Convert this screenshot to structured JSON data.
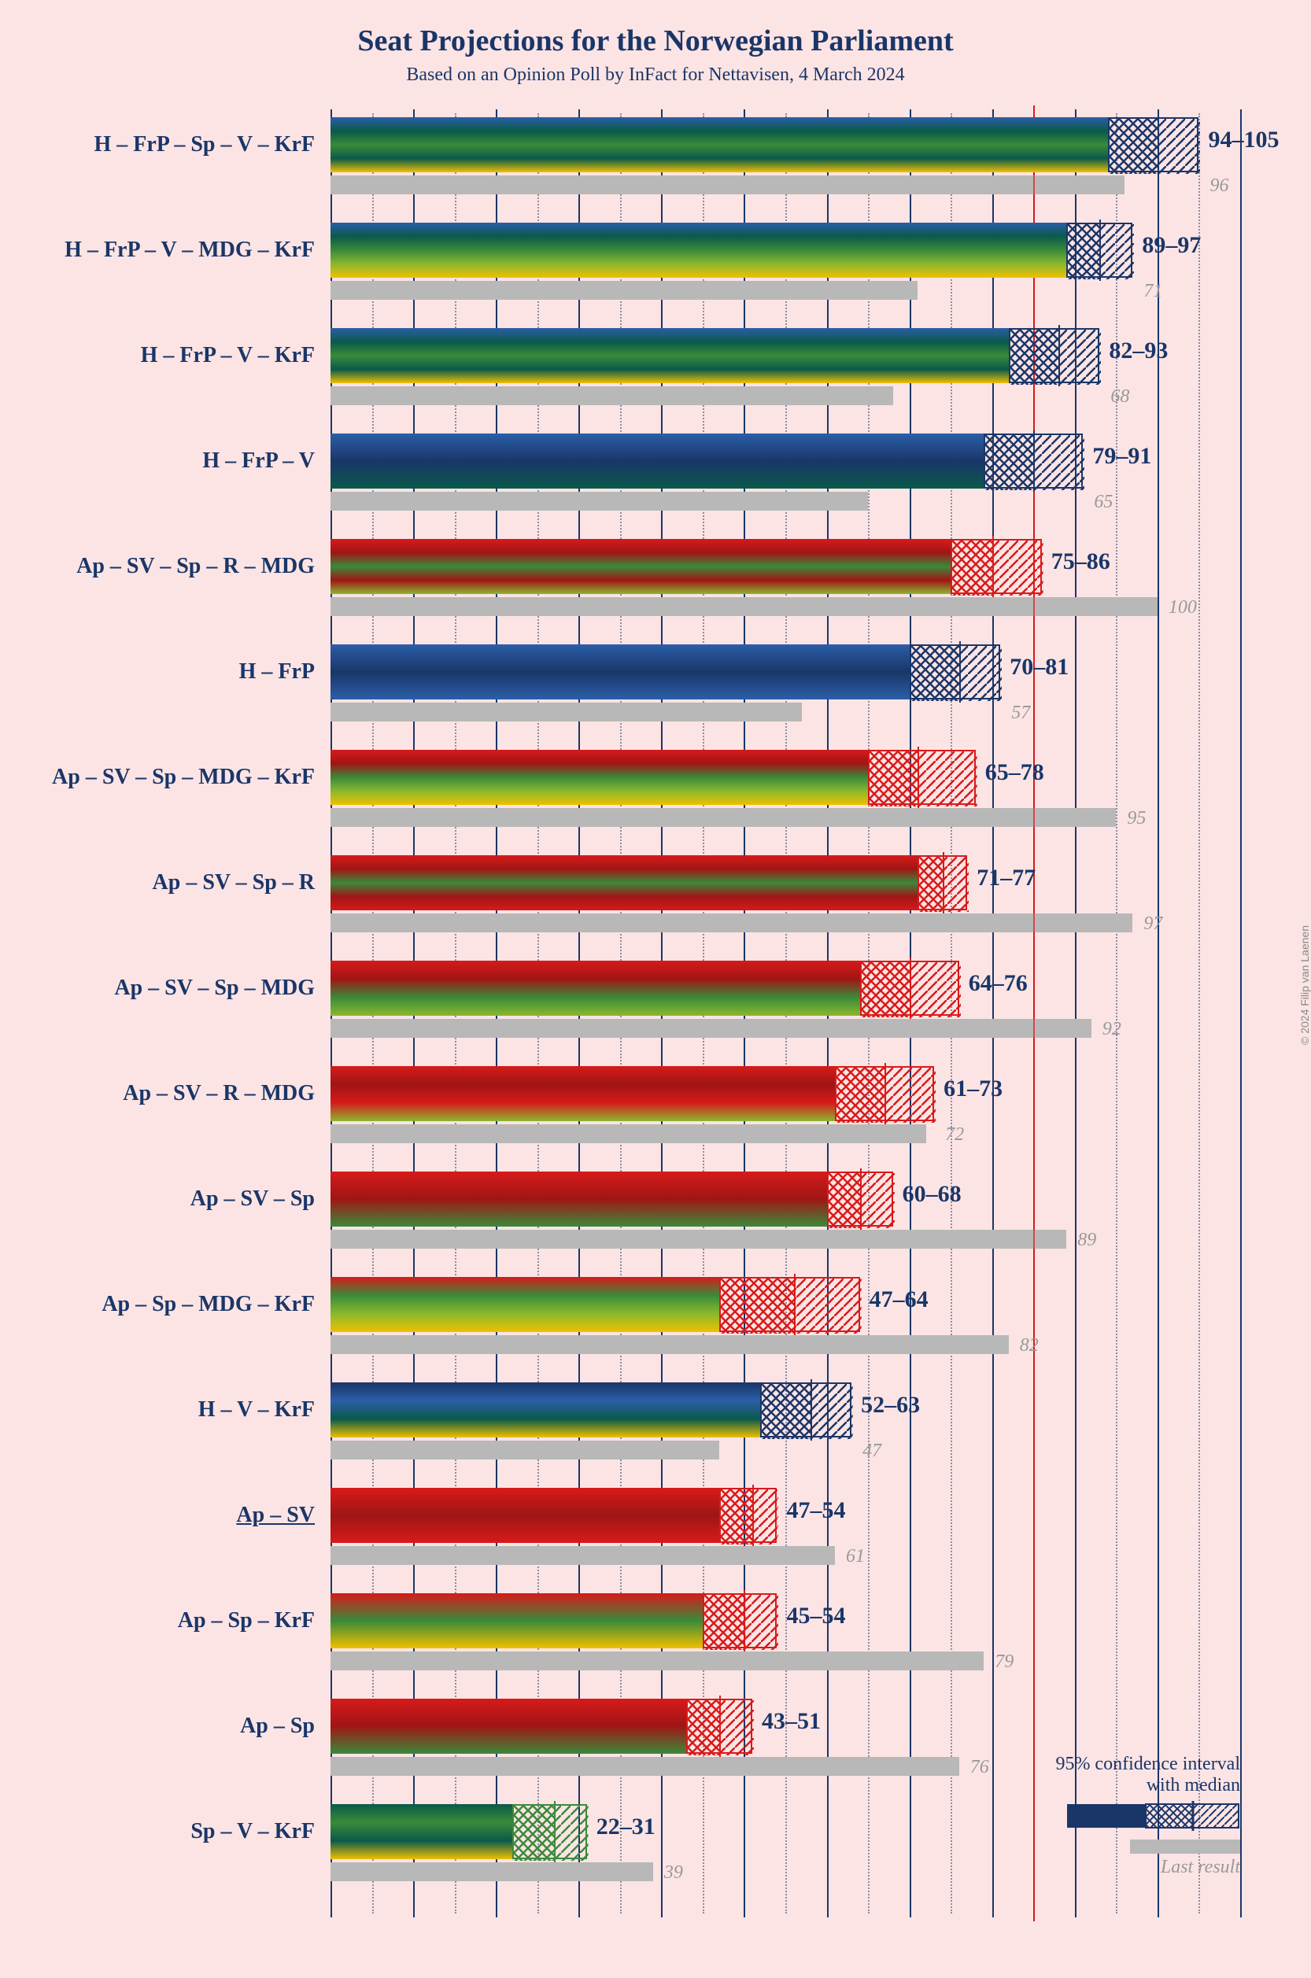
{
  "title": "Seat Projections for the Norwegian Parliament",
  "subtitle": "Based on an Opinion Poll by InFact for Nettavisen, 4 March 2024",
  "title_fontsize": 38,
  "subtitle_fontsize": 24,
  "label_fontsize": 28,
  "value_fontsize": 30,
  "last_fontsize": 24,
  "xmax": 110,
  "major_step": 10,
  "minor_step": 5,
  "majority": 85,
  "gridline_color": "#1a3668",
  "majority_color": "#d71a1a",
  "last_bar_color": "#b8b8b8",
  "colors": {
    "blue_dark": "#1a3668",
    "blue_mid": "#2b5ea8",
    "teal": "#0a5a4a",
    "green": "#3a8a3a",
    "lime": "#8ab82e",
    "yellow": "#f0c000",
    "red": "#d71a1a",
    "red_dark": "#a01515"
  },
  "legend": {
    "line1": "95% confidence interval",
    "line2": "with median",
    "last": "Last result"
  },
  "copyright": "© 2024 Filip van Laenen",
  "rows": [
    {
      "label": "H – FrP – Sp – V – KrF",
      "low": 94,
      "high": 105,
      "median": 100,
      "last": 96,
      "underline": false,
      "gradient": [
        "#2b5ea8",
        "#0a5a4a",
        "#3a8a3a",
        "#0a5a4a",
        "#f0c000"
      ],
      "ci_color": "#1a3668"
    },
    {
      "label": "H – FrP – V – MDG – KrF",
      "low": 89,
      "high": 97,
      "median": 93,
      "last": 71,
      "underline": false,
      "gradient": [
        "#2b5ea8",
        "#0a5a4a",
        "#3a8a3a",
        "#8ab82e",
        "#f0c000"
      ],
      "ci_color": "#1a3668"
    },
    {
      "label": "H – FrP – V – KrF",
      "low": 82,
      "high": 93,
      "median": 88,
      "last": 68,
      "underline": false,
      "gradient": [
        "#2b5ea8",
        "#0a5a4a",
        "#3a8a3a",
        "#0a5a4a",
        "#f0c000"
      ],
      "ci_color": "#1a3668"
    },
    {
      "label": "H – FrP – V",
      "low": 79,
      "high": 91,
      "median": 85,
      "last": 65,
      "underline": false,
      "gradient": [
        "#2b5ea8",
        "#1a3668",
        "#0a5a4a"
      ],
      "ci_color": "#1a3668"
    },
    {
      "label": "Ap – SV – Sp – R – MDG",
      "low": 75,
      "high": 86,
      "median": 80,
      "last": 100,
      "underline": false,
      "gradient": [
        "#d71a1a",
        "#a01515",
        "#3a8a3a",
        "#a01515",
        "#8ab82e"
      ],
      "ci_color": "#d71a1a"
    },
    {
      "label": "H – FrP",
      "low": 70,
      "high": 81,
      "median": 76,
      "last": 57,
      "underline": false,
      "gradient": [
        "#2b5ea8",
        "#1a3668",
        "#2b5ea8"
      ],
      "ci_color": "#1a3668"
    },
    {
      "label": "Ap – SV – Sp – MDG – KrF",
      "low": 65,
      "high": 78,
      "median": 71,
      "last": 95,
      "underline": false,
      "gradient": [
        "#d71a1a",
        "#a01515",
        "#3a8a3a",
        "#8ab82e",
        "#f0c000"
      ],
      "ci_color": "#d71a1a"
    },
    {
      "label": "Ap – SV – Sp – R",
      "low": 71,
      "high": 77,
      "median": 74,
      "last": 97,
      "underline": false,
      "gradient": [
        "#d71a1a",
        "#a01515",
        "#3a8a3a",
        "#a01515",
        "#d71a1a"
      ],
      "ci_color": "#d71a1a"
    },
    {
      "label": "Ap – SV – Sp – MDG",
      "low": 64,
      "high": 76,
      "median": 70,
      "last": 92,
      "underline": false,
      "gradient": [
        "#d71a1a",
        "#a01515",
        "#3a8a3a",
        "#8ab82e"
      ],
      "ci_color": "#d71a1a"
    },
    {
      "label": "Ap – SV – R – MDG",
      "low": 61,
      "high": 73,
      "median": 67,
      "last": 72,
      "underline": false,
      "gradient": [
        "#d71a1a",
        "#a01515",
        "#d71a1a",
        "#8ab82e"
      ],
      "ci_color": "#d71a1a"
    },
    {
      "label": "Ap – SV – Sp",
      "low": 60,
      "high": 68,
      "median": 64,
      "last": 89,
      "underline": false,
      "gradient": [
        "#d71a1a",
        "#a01515",
        "#3a8a3a"
      ],
      "ci_color": "#d71a1a"
    },
    {
      "label": "Ap – Sp – MDG – KrF",
      "low": 47,
      "high": 64,
      "median": 56,
      "last": 82,
      "underline": false,
      "gradient": [
        "#d71a1a",
        "#3a8a3a",
        "#8ab82e",
        "#f0c000"
      ],
      "ci_color": "#d71a1a"
    },
    {
      "label": "H – V – KrF",
      "low": 52,
      "high": 63,
      "median": 58,
      "last": 47,
      "underline": false,
      "gradient": [
        "#1a3668",
        "#2b5ea8",
        "#0a5a4a",
        "#f0c000"
      ],
      "ci_color": "#1a3668"
    },
    {
      "label": "Ap – SV",
      "low": 47,
      "high": 54,
      "median": 51,
      "last": 61,
      "underline": true,
      "gradient": [
        "#d71a1a",
        "#a01515",
        "#d71a1a"
      ],
      "ci_color": "#d71a1a"
    },
    {
      "label": "Ap – Sp – KrF",
      "low": 45,
      "high": 54,
      "median": 50,
      "last": 79,
      "underline": false,
      "gradient": [
        "#d71a1a",
        "#3a8a3a",
        "#f0c000"
      ],
      "ci_color": "#d71a1a"
    },
    {
      "label": "Ap – Sp",
      "low": 43,
      "high": 51,
      "median": 47,
      "last": 76,
      "underline": false,
      "gradient": [
        "#d71a1a",
        "#a01515",
        "#3a8a3a"
      ],
      "ci_color": "#d71a1a"
    },
    {
      "label": "Sp – V – KrF",
      "low": 22,
      "high": 31,
      "median": 27,
      "last": 39,
      "underline": false,
      "gradient": [
        "#0a5a4a",
        "#3a8a3a",
        "#0a5a4a",
        "#f0c000"
      ],
      "ci_color": "#3a8a3a"
    }
  ]
}
